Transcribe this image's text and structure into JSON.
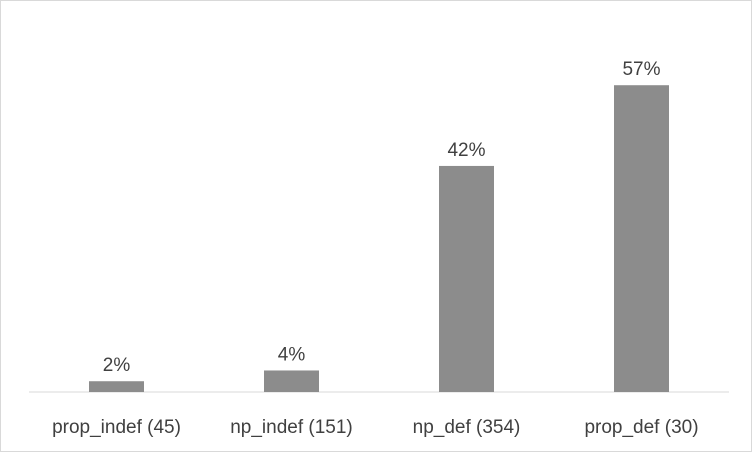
{
  "chart_data": {
    "type": "bar",
    "title": "",
    "xlabel": "",
    "ylabel": "",
    "categories": [
      "prop_indef (45)",
      "np_indef (151)",
      "np_def (354)",
      "prop_def (30)"
    ],
    "values": [
      2,
      4,
      42,
      57
    ],
    "data_labels": [
      "2%",
      "4%",
      "42%",
      "57%"
    ],
    "ylim": [
      0,
      68
    ],
    "unit": "%",
    "grid": false,
    "legend": "none",
    "bar_color": "#8c8c8c",
    "axis_color": "#d9d9d9",
    "label_color": "#404040"
  }
}
